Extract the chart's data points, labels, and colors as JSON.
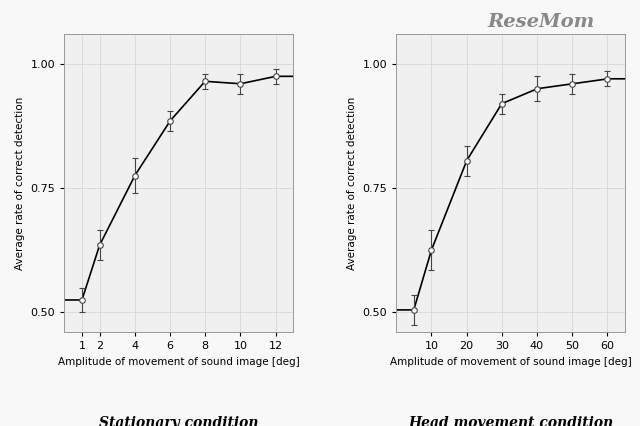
{
  "stationary": {
    "x": [
      1,
      2,
      4,
      6,
      8,
      10,
      12
    ],
    "y": [
      0.525,
      0.635,
      0.775,
      0.885,
      0.965,
      0.96,
      0.975
    ],
    "yerr": [
      0.025,
      0.03,
      0.035,
      0.02,
      0.015,
      0.02,
      0.015
    ],
    "xlabel": "Amplitude of movement of sound image [deg]",
    "title": "Stationary condition",
    "xlim": [
      0,
      13
    ],
    "xticks": [
      1,
      2,
      4,
      6,
      8,
      10,
      12
    ],
    "ylim": [
      0.46,
      1.06
    ],
    "yticks": [
      0.5,
      0.75,
      1.0
    ],
    "sigmoid_p0": [
      0.5,
      3.5,
      0.8,
      0.5
    ]
  },
  "head_movement": {
    "x": [
      5,
      10,
      20,
      30,
      40,
      50,
      60
    ],
    "y": [
      0.505,
      0.625,
      0.805,
      0.92,
      0.95,
      0.96,
      0.97
    ],
    "yerr": [
      0.03,
      0.04,
      0.03,
      0.02,
      0.025,
      0.02,
      0.015
    ],
    "xlabel": "Amplitude of movement of sound image [deg]",
    "title": "Head movement condition",
    "xlim": [
      0,
      65
    ],
    "xticks": [
      10,
      20,
      30,
      40,
      50,
      60
    ],
    "ylim": [
      0.46,
      1.06
    ],
    "yticks": [
      0.5,
      0.75,
      1.0
    ],
    "sigmoid_p0": [
      0.5,
      17,
      0.15,
      0.5
    ]
  },
  "ylabel": "Average rate of correct detection",
  "bg_color": "#f0f0f0",
  "fig_bg_color": "#f8f8f8",
  "line_color": "#000000",
  "marker_facecolor": "#ffffff",
  "marker_edgecolor": "#444444",
  "grid_color": "#d8d8d8",
  "title_fontsize": 10,
  "label_fontsize": 7.5,
  "tick_fontsize": 8,
  "resemom_text": "ReseMom",
  "resemom_fontsize": 14
}
